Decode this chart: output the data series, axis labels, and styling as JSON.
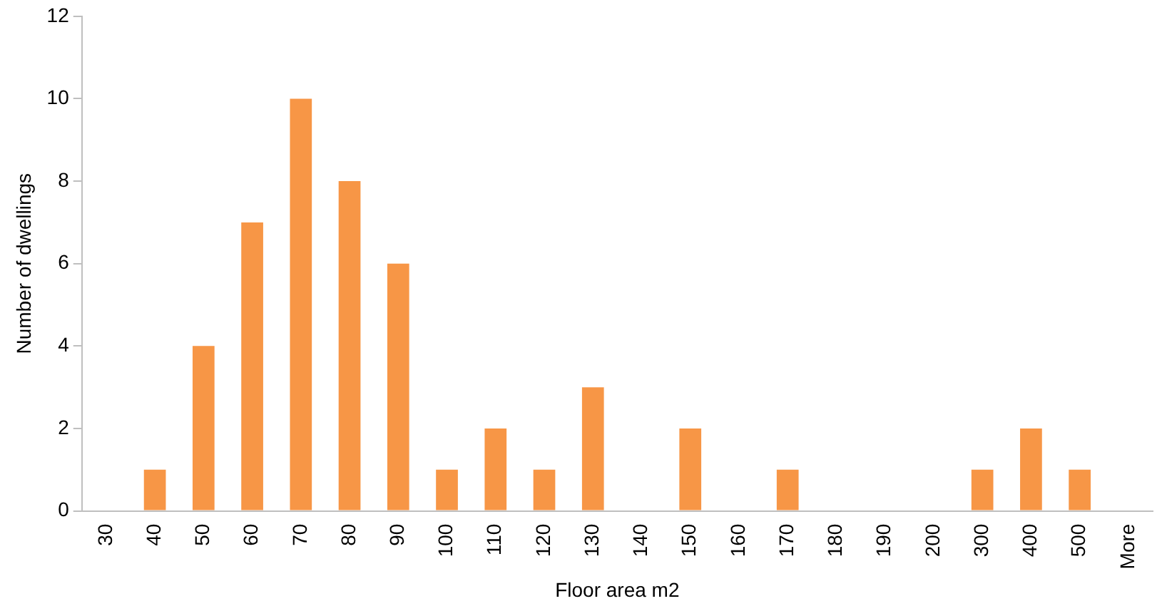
{
  "chart_data": {
    "type": "bar",
    "xlabel": "Floor area m2",
    "ylabel": "Number of dwellings",
    "categories": [
      "30",
      "40",
      "50",
      "60",
      "70",
      "80",
      "90",
      "100",
      "110",
      "120",
      "130",
      "140",
      "150",
      "160",
      "170",
      "180",
      "190",
      "200",
      "300",
      "400",
      "500",
      "More"
    ],
    "values": [
      0,
      1,
      4,
      7,
      10,
      8,
      6,
      1,
      2,
      1,
      3,
      0,
      2,
      0,
      1,
      0,
      0,
      0,
      1,
      2,
      1,
      0
    ],
    "color": "#f79646",
    "ylim": [
      0,
      12
    ],
    "yticks": [
      0,
      2,
      4,
      6,
      8,
      10,
      12
    ],
    "grid": false,
    "legend": false
  }
}
